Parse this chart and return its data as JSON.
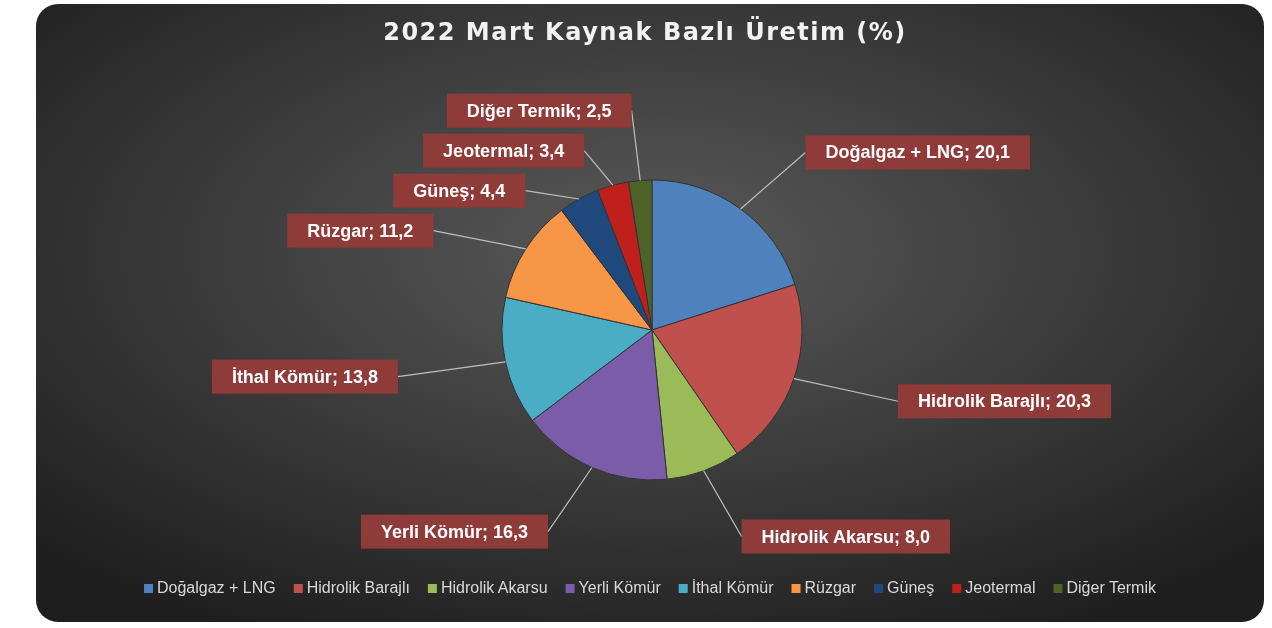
{
  "chart_data": {
    "type": "pie",
    "title": "2022 Mart Kaynak Bazlı Üretim (%)",
    "categories": [
      "Doğalgaz + LNG",
      "Hidrolik Barajlı",
      "Hidrolik Akarsu",
      "Yerli Kömür",
      "İthal Kömür",
      "Rüzgar",
      "Güneş",
      "Jeotermal",
      "Diğer Termik"
    ],
    "values": [
      20.1,
      20.3,
      8.0,
      16.3,
      13.8,
      11.2,
      4.4,
      3.4,
      2.5
    ],
    "value_labels": [
      "Doğalgaz + LNG; 20,1",
      "Hidrolik Barajlı; 20,3",
      "Hidrolik Akarsu; 8,0",
      "Yerli Kömür; 16,3",
      "İthal Kömür; 13,8",
      "Rüzgar; 11,2",
      "Güneş; 4,4",
      "Jeotermal; 3,4",
      "Diğer Termik; 2,5"
    ],
    "colors": [
      "#4f81bd",
      "#c0504d",
      "#9bbb59",
      "#7a5ca8",
      "#4bacc6",
      "#f79646",
      "#1f497d",
      "#c0201c",
      "#4f6228"
    ],
    "legend": "bottom"
  }
}
